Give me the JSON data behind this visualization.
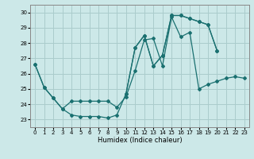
{
  "xlabel": "Humidex (Indice chaleur)",
  "background_color": "#cce8e8",
  "grid_color": "#aacccc",
  "line_color": "#1a7070",
  "xlim": [
    -0.5,
    23.5
  ],
  "ylim": [
    22.5,
    30.5
  ],
  "yticks": [
    23,
    24,
    25,
    26,
    27,
    28,
    29,
    30
  ],
  "xticks": [
    0,
    1,
    2,
    3,
    4,
    5,
    6,
    7,
    8,
    9,
    10,
    11,
    12,
    13,
    14,
    15,
    16,
    17,
    18,
    19,
    20,
    21,
    22,
    23
  ],
  "series": [
    [
      26.6,
      25.1,
      24.4,
      23.7,
      23.3,
      23.2,
      23.2,
      23.2,
      23.1,
      23.3,
      24.7,
      27.7,
      28.5,
      26.5,
      27.2,
      29.8,
      29.8,
      29.6,
      29.4,
      29.2,
      27.5,
      null,
      null,
      null
    ],
    [
      26.6,
      25.1,
      24.4,
      23.7,
      24.2,
      24.2,
      24.2,
      24.2,
      24.2,
      23.8,
      24.5,
      26.2,
      28.2,
      28.3,
      26.5,
      29.7,
      28.4,
      28.7,
      25.0,
      25.3,
      25.5,
      25.7,
      25.8,
      25.7
    ],
    [
      null,
      null,
      null,
      null,
      null,
      null,
      null,
      null,
      null,
      null,
      24.7,
      27.7,
      28.5,
      26.5,
      27.2,
      29.8,
      29.8,
      29.6,
      29.4,
      29.2,
      27.5,
      null,
      null,
      null
    ]
  ]
}
